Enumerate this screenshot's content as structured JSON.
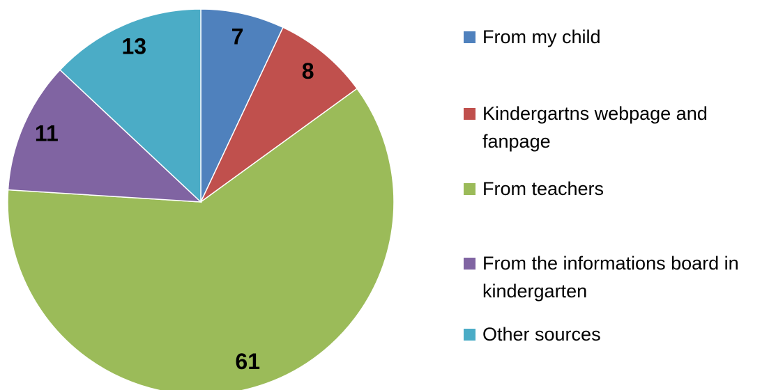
{
  "chart_data": {
    "type": "pie",
    "categories": [
      "From my child",
      "Kindergartns webpage and fanpage",
      "From teachers",
      "From the informations board in kindergarten",
      "Other sources"
    ],
    "values": [
      7,
      8,
      61,
      11,
      13
    ],
    "colors": [
      "#4f81bd",
      "#c0504d",
      "#9bbb59",
      "#8064a2",
      "#4bacc6"
    ],
    "legend": "right"
  }
}
